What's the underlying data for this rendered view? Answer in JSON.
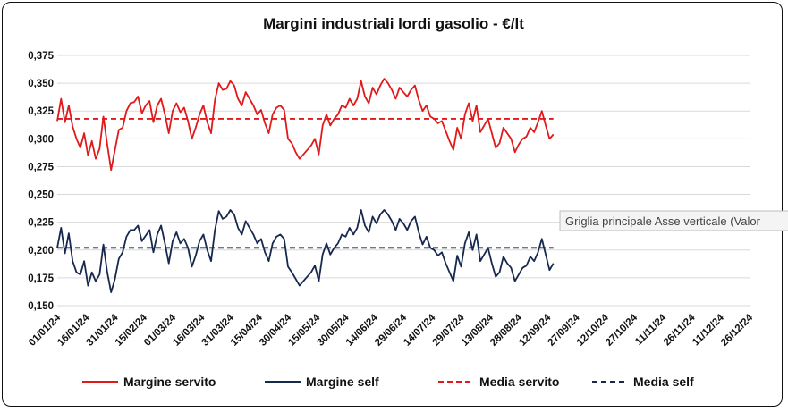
{
  "chart_data": {
    "type": "line",
    "title": "Margini industriali lordi gasolio - €/lt",
    "ylim": [
      0.15,
      0.375
    ],
    "yticks": [
      "0,375",
      "0,350",
      "0,325",
      "0,300",
      "0,275",
      "0,250",
      "0,225",
      "0,200",
      "0,175",
      "0,150"
    ],
    "ytick_values": [
      0.375,
      0.35,
      0.325,
      0.3,
      0.275,
      0.25,
      0.225,
      0.2,
      0.175,
      0.15
    ],
    "xticks": [
      "01/01/24",
      "16/01/24",
      "31/01/24",
      "15/02/24",
      "01/03/24",
      "16/03/24",
      "31/03/24",
      "15/04/24",
      "30/04/24",
      "15/05/24",
      "30/05/24",
      "14/06/24",
      "29/06/24",
      "14/07/24",
      "29/07/24",
      "13/08/24",
      "28/08/24",
      "12/09/24",
      "27/09/24",
      "12/10/24",
      "27/10/24",
      "11/11/24",
      "26/11/24",
      "11/12/24",
      "26/12/24"
    ],
    "x_day_of_year": [
      1,
      16,
      31,
      46,
      61,
      76,
      91,
      106,
      121,
      136,
      151,
      166,
      181,
      196,
      211,
      226,
      241,
      256,
      271,
      286,
      301,
      316,
      331,
      346,
      361
    ],
    "x_step_days": 2,
    "x_start": "01/01/24",
    "grid": "horizontal",
    "legend_position": "bottom",
    "series": [
      {
        "name": "Margine servito",
        "color": "#e0191b",
        "style": "solid",
        "values": [
          0.316,
          0.336,
          0.315,
          0.33,
          0.311,
          0.3,
          0.292,
          0.305,
          0.285,
          0.298,
          0.282,
          0.291,
          0.32,
          0.295,
          0.272,
          0.29,
          0.308,
          0.31,
          0.325,
          0.332,
          0.333,
          0.338,
          0.323,
          0.33,
          0.334,
          0.315,
          0.33,
          0.336,
          0.322,
          0.305,
          0.325,
          0.332,
          0.324,
          0.328,
          0.316,
          0.3,
          0.31,
          0.322,
          0.33,
          0.315,
          0.305,
          0.335,
          0.35,
          0.344,
          0.345,
          0.352,
          0.348,
          0.336,
          0.33,
          0.342,
          0.336,
          0.33,
          0.322,
          0.326,
          0.314,
          0.305,
          0.322,
          0.328,
          0.33,
          0.326,
          0.3,
          0.296,
          0.288,
          0.282,
          0.286,
          0.29,
          0.294,
          0.3,
          0.286,
          0.312,
          0.322,
          0.312,
          0.318,
          0.322,
          0.33,
          0.328,
          0.336,
          0.33,
          0.336,
          0.352,
          0.338,
          0.332,
          0.346,
          0.34,
          0.348,
          0.354,
          0.35,
          0.344,
          0.336,
          0.346,
          0.342,
          0.338,
          0.344,
          0.348,
          0.335,
          0.325,
          0.33,
          0.32,
          0.318,
          0.314,
          0.316,
          0.307,
          0.298,
          0.29,
          0.31,
          0.3,
          0.322,
          0.332,
          0.316,
          0.33,
          0.306,
          0.312,
          0.318,
          0.305,
          0.292,
          0.296,
          0.31,
          0.305,
          0.3,
          0.288,
          0.295,
          0.3,
          0.302,
          0.31,
          0.306,
          0.315,
          0.325,
          0.312,
          0.3,
          0.304
        ]
      },
      {
        "name": "Margine self",
        "color": "#17284f",
        "style": "solid",
        "values": [
          0.202,
          0.22,
          0.197,
          0.215,
          0.19,
          0.18,
          0.178,
          0.19,
          0.168,
          0.18,
          0.172,
          0.178,
          0.205,
          0.18,
          0.162,
          0.174,
          0.192,
          0.198,
          0.212,
          0.218,
          0.218,
          0.222,
          0.208,
          0.213,
          0.218,
          0.198,
          0.214,
          0.222,
          0.206,
          0.188,
          0.208,
          0.216,
          0.206,
          0.21,
          0.202,
          0.185,
          0.195,
          0.208,
          0.214,
          0.2,
          0.19,
          0.218,
          0.235,
          0.228,
          0.23,
          0.236,
          0.232,
          0.22,
          0.214,
          0.226,
          0.22,
          0.214,
          0.206,
          0.21,
          0.198,
          0.19,
          0.206,
          0.212,
          0.214,
          0.21,
          0.185,
          0.18,
          0.174,
          0.168,
          0.172,
          0.176,
          0.18,
          0.186,
          0.172,
          0.196,
          0.206,
          0.196,
          0.202,
          0.206,
          0.214,
          0.212,
          0.22,
          0.214,
          0.22,
          0.236,
          0.222,
          0.216,
          0.23,
          0.224,
          0.232,
          0.236,
          0.232,
          0.226,
          0.218,
          0.228,
          0.224,
          0.218,
          0.226,
          0.23,
          0.216,
          0.205,
          0.212,
          0.202,
          0.2,
          0.195,
          0.198,
          0.188,
          0.18,
          0.172,
          0.195,
          0.185,
          0.206,
          0.216,
          0.2,
          0.214,
          0.19,
          0.196,
          0.202,
          0.188,
          0.176,
          0.18,
          0.194,
          0.188,
          0.184,
          0.172,
          0.178,
          0.184,
          0.186,
          0.194,
          0.19,
          0.198,
          0.21,
          0.196,
          0.182,
          0.188
        ]
      },
      {
        "name": "Media servito",
        "color": "#e0191b",
        "style": "dashed",
        "constant": 0.318
      },
      {
        "name": "Media self",
        "color": "#17284f",
        "style": "dashed",
        "constant": 0.202
      }
    ]
  },
  "tooltip": {
    "text": "Griglia principale Asse verticale (Valor"
  }
}
